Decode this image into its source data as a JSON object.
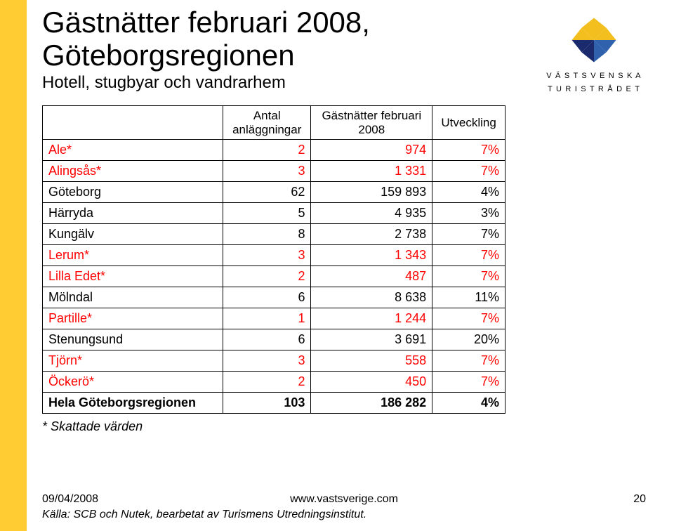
{
  "colors": {
    "left_bar": "#ffcc33",
    "estimated_row_text": "#ff0000",
    "border": "#000000",
    "background": "#ffffff"
  },
  "title_line1": "Gästnätter februari 2008,",
  "title_line2": "Göteborgsregionen",
  "subhead": "Hotell, stugbyar och vandrarhem",
  "logo": {
    "line1": "V Ä S T S V E N S K A",
    "line2": "T U R I S T R Å D E T",
    "compass_colors": {
      "ne": "#f2bf1e",
      "se": "#2f61ad",
      "sw": "#1a2a6c",
      "nw": "#f2bf1e"
    }
  },
  "table": {
    "headers": {
      "col1": "",
      "col2_l1": "Antal",
      "col2_l2": "anläggningar",
      "col3_l1": "Gästnätter februari",
      "col3_l2": "2008",
      "col4": "Utveckling"
    },
    "rows": [
      {
        "name": "Ale*",
        "n": "2",
        "g": "974",
        "u": "7%",
        "est": true
      },
      {
        "name": "Alingsås*",
        "n": "3",
        "g": "1 331",
        "u": "7%",
        "est": true
      },
      {
        "name": "Göteborg",
        "n": "62",
        "g": "159 893",
        "u": "4%",
        "est": false
      },
      {
        "name": "Härryda",
        "n": "5",
        "g": "4 935",
        "u": "3%",
        "est": false
      },
      {
        "name": "Kungälv",
        "n": "8",
        "g": "2 738",
        "u": "7%",
        "est": false
      },
      {
        "name": "Lerum*",
        "n": "3",
        "g": "1 343",
        "u": "7%",
        "est": true
      },
      {
        "name": "Lilla Edet*",
        "n": "2",
        "g": "487",
        "u": "7%",
        "est": true
      },
      {
        "name": "Mölndal",
        "n": "6",
        "g": "8 638",
        "u": "11%",
        "est": false
      },
      {
        "name": "Partille*",
        "n": "1",
        "g": "1 244",
        "u": "7%",
        "est": true
      },
      {
        "name": "Stenungsund",
        "n": "6",
        "g": "3 691",
        "u": "20%",
        "est": false
      },
      {
        "name": "Tjörn*",
        "n": "3",
        "g": "558",
        "u": "7%",
        "est": true
      },
      {
        "name": "Öckerö*",
        "n": "2",
        "g": "450",
        "u": "7%",
        "est": true
      }
    ],
    "total": {
      "name": "Hela Göteborgsregionen",
      "n": "103",
      "g": "186 282",
      "u": "4%"
    }
  },
  "footnote": "* Skattade värden",
  "footer": {
    "date": "09/04/2008",
    "url": "www.vastsverige.com",
    "page": "20",
    "source": "Källa: SCB och Nutek, bearbetat av Turismens Utredningsinstitut."
  }
}
